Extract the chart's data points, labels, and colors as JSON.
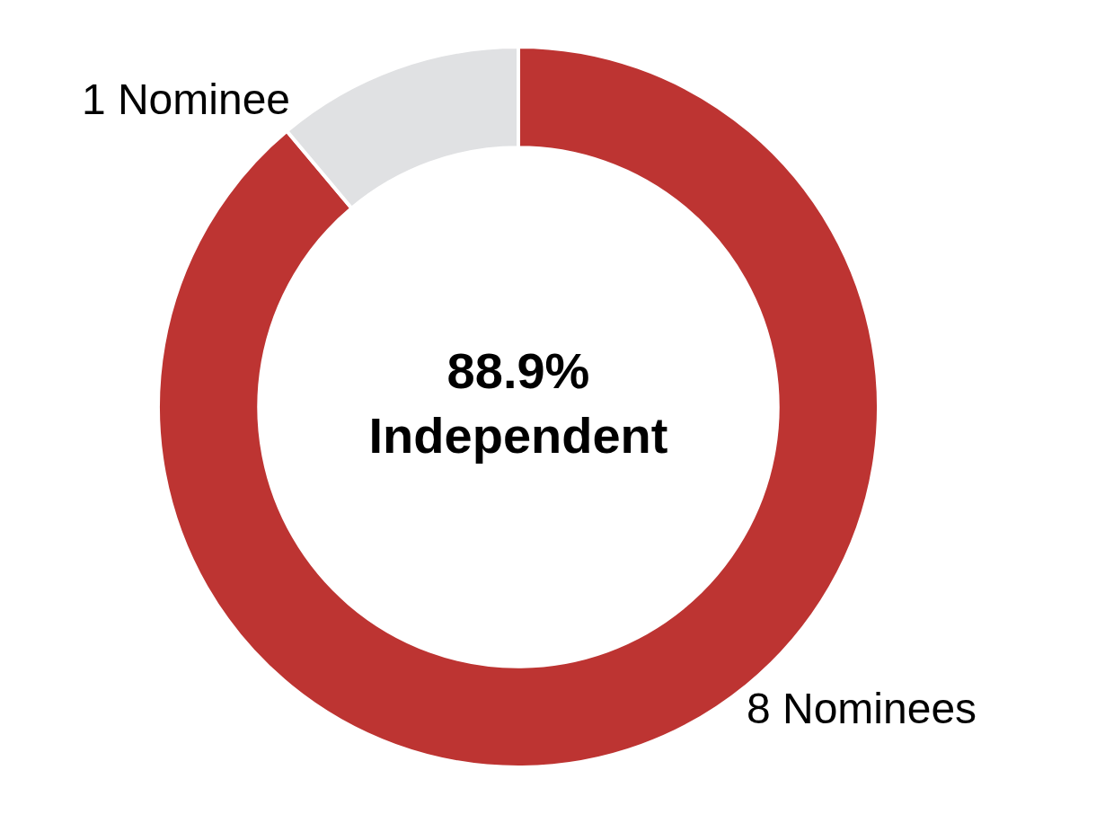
{
  "chart_data": {
    "type": "donut",
    "categories": [
      "8 Nominees",
      "1 Nominee"
    ],
    "values": [
      8,
      1
    ],
    "colors": [
      "#bd3432",
      "#e0e1e3"
    ],
    "annotations": [
      "88.9%",
      "Independent"
    ],
    "legend": false
  }
}
